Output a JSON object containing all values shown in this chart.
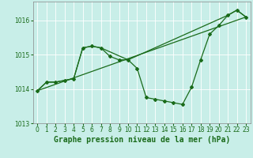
{
  "title": "Graphe pression niveau de la mer (hPa)",
  "background_color": "#c8eee8",
  "line_color": "#1a6b1a",
  "grid_color": "#ffffff",
  "xlim": [
    -0.5,
    23.5
  ],
  "ylim": [
    1013.0,
    1016.55
  ],
  "yticks": [
    1013,
    1014,
    1015,
    1016
  ],
  "xticks": [
    0,
    1,
    2,
    3,
    4,
    5,
    6,
    7,
    8,
    9,
    10,
    11,
    12,
    13,
    14,
    15,
    16,
    17,
    18,
    19,
    20,
    21,
    22,
    23
  ],
  "series1_x": [
    0,
    1,
    2,
    3,
    4,
    5,
    6,
    7,
    8,
    9,
    10,
    11,
    12,
    13,
    14,
    15,
    16,
    17,
    18,
    19,
    20,
    21,
    22,
    23
  ],
  "series1_y": [
    1013.95,
    1014.2,
    1014.2,
    1014.25,
    1014.3,
    1015.2,
    1015.25,
    1015.2,
    1014.95,
    1014.85,
    1014.85,
    1014.6,
    1013.75,
    1013.7,
    1013.65,
    1013.6,
    1013.55,
    1014.05,
    1014.85,
    1015.6,
    1015.85,
    1016.15,
    1016.3,
    1016.1
  ],
  "series2_x": [
    0,
    1,
    2,
    3,
    4,
    5,
    6,
    7,
    10,
    21,
    22,
    23
  ],
  "series2_y": [
    1013.95,
    1014.2,
    1014.2,
    1014.25,
    1014.3,
    1015.2,
    1015.25,
    1015.2,
    1014.85,
    1016.15,
    1016.3,
    1016.1
  ],
  "series3_x": [
    0,
    23
  ],
  "series3_y": [
    1013.95,
    1016.1
  ],
  "xlabel_fontsize": 7,
  "tick_fontsize": 5.5
}
